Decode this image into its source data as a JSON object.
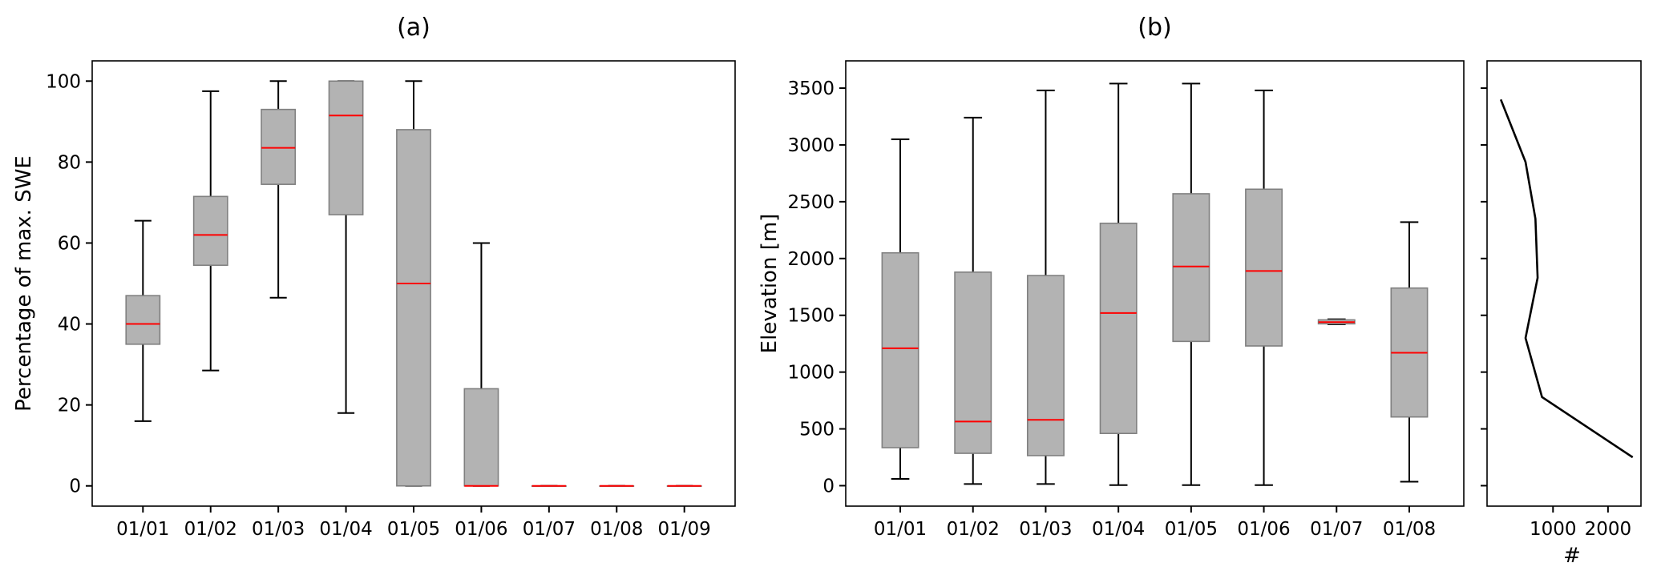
{
  "chart_data": [
    {
      "type": "box",
      "title": "(a)",
      "xlabel": "",
      "ylabel": "Percentage of max. SWE",
      "ylim": [
        -5,
        105
      ],
      "yticks": [
        0,
        20,
        40,
        60,
        80,
        100
      ],
      "categories": [
        "01/01",
        "01/02",
        "01/03",
        "01/04",
        "01/05",
        "01/06",
        "01/07",
        "01/08",
        "01/09"
      ],
      "boxes": [
        {
          "whislo": 16,
          "q1": 35,
          "med": 40,
          "q3": 47,
          "whishi": 65.5
        },
        {
          "whislo": 28.5,
          "q1": 54.5,
          "med": 62,
          "q3": 71.5,
          "whishi": 97.5
        },
        {
          "whislo": 46.5,
          "q1": 74.5,
          "med": 83.5,
          "q3": 93,
          "whishi": 100
        },
        {
          "whislo": 18,
          "q1": 67,
          "med": 91.5,
          "q3": 100,
          "whishi": 100
        },
        {
          "whislo": 0,
          "q1": 0,
          "med": 50,
          "q3": 88,
          "whishi": 100
        },
        {
          "whislo": 0,
          "q1": 0,
          "med": 0,
          "q3": 24,
          "whishi": 60
        },
        {
          "whislo": 0,
          "q1": 0,
          "med": 0,
          "q3": 0,
          "whishi": 0
        },
        {
          "whislo": 0,
          "q1": 0,
          "med": 0,
          "q3": 0,
          "whishi": 0
        },
        {
          "whislo": 0,
          "q1": 0,
          "med": 0,
          "q3": 0,
          "whishi": 0
        }
      ]
    },
    {
      "type": "box",
      "title": "(b)",
      "xlabel": "",
      "ylabel": "Elevation [m]",
      "ylim": [
        -180,
        3740
      ],
      "yticks": [
        0,
        500,
        1000,
        1500,
        2000,
        2500,
        3000,
        3500
      ],
      "categories": [
        "01/01",
        "01/02",
        "01/03",
        "01/04",
        "01/05",
        "01/06",
        "01/07",
        "01/08"
      ],
      "boxes": [
        {
          "whislo": 60,
          "q1": 335,
          "med": 1210,
          "q3": 2050,
          "whishi": 3050
        },
        {
          "whislo": 15,
          "q1": 285,
          "med": 565,
          "q3": 1880,
          "whishi": 3240
        },
        {
          "whislo": 15,
          "q1": 265,
          "med": 580,
          "q3": 1850,
          "whishi": 3480
        },
        {
          "whislo": 5,
          "q1": 460,
          "med": 1520,
          "q3": 2310,
          "whishi": 3540
        },
        {
          "whislo": 5,
          "q1": 1270,
          "med": 1930,
          "q3": 2570,
          "whishi": 3540
        },
        {
          "whislo": 5,
          "q1": 1230,
          "med": 1890,
          "q3": 2610,
          "whishi": 3480
        },
        {
          "whislo": 1420,
          "q1": 1425,
          "med": 1440,
          "q3": 1460,
          "whishi": 1465
        },
        {
          "whislo": 35,
          "q1": 605,
          "med": 1170,
          "q3": 1740,
          "whishi": 2320
        }
      ]
    },
    {
      "type": "line",
      "title": "",
      "xlabel": "#",
      "ylabel": "",
      "xlim": [
        -200,
        2600
      ],
      "xticks": [
        1000,
        2000
      ],
      "ylim": [
        -180,
        3740
      ],
      "x": [
        50,
        500,
        680,
        720,
        500,
        800,
        2450
      ],
      "y": [
        3400,
        2850,
        2350,
        1830,
        1300,
        780,
        250
      ]
    }
  ]
}
